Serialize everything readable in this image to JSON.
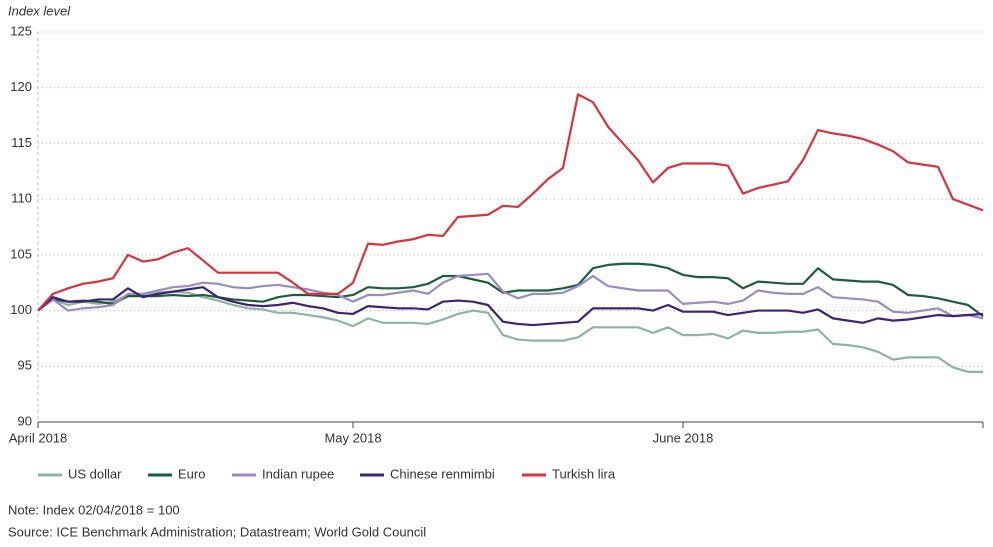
{
  "chart_data": {
    "type": "line",
    "y_label": "Index level",
    "note": "Note: Index 02/04/2018 = 100",
    "source": "Source: ICE Benchmark Administration; Datastream; World Gold Council",
    "categories": [
      "April 2018",
      null,
      null,
      null,
      null,
      null,
      null,
      null,
      null,
      null,
      null,
      null,
      null,
      null,
      null,
      null,
      null,
      null,
      null,
      null,
      null,
      "May 2018",
      null,
      null,
      null,
      null,
      null,
      null,
      null,
      null,
      null,
      null,
      null,
      null,
      null,
      null,
      null,
      null,
      null,
      null,
      null,
      null,
      null,
      "June 2018",
      null,
      null,
      null,
      null,
      null,
      null,
      null,
      null,
      null,
      null,
      null,
      null,
      null,
      null,
      null,
      null,
      null,
      null,
      null,
      null
    ],
    "ylim": [
      90,
      125
    ],
    "yticks": [
      90,
      95,
      100,
      105,
      110,
      115,
      120,
      125
    ],
    "grid": true,
    "series": [
      {
        "name": "US dollar",
        "color": "#8fb3a3",
        "values": [
          100,
          101,
          100.5,
          100.8,
          100.6,
          100.8,
          101.4,
          101.4,
          101.6,
          101.7,
          101.6,
          101.2,
          100.9,
          100.5,
          100.2,
          100.1,
          99.8,
          99.8,
          99.6,
          99.4,
          99.1,
          98.6,
          99.3,
          98.9,
          98.9,
          98.9,
          98.8,
          99.2,
          99.7,
          100,
          99.8,
          97.8,
          97.4,
          97.3,
          97.3,
          97.3,
          97.6,
          98.5,
          98.5,
          98.5,
          98.5,
          98,
          98.5,
          97.8,
          97.8,
          97.9,
          97.5,
          98.2,
          98,
          98,
          98.1,
          98.1,
          98.3,
          97,
          96.9,
          96.7,
          96.3,
          95.6,
          95.8,
          95.8,
          95.8,
          94.9,
          94.5,
          94.5
        ]
      },
      {
        "name": "Euro",
        "color": "#1f5c3d",
        "values": [
          100,
          101,
          100.8,
          100.9,
          100.8,
          100.6,
          101.3,
          101.3,
          101.3,
          101.4,
          101.3,
          101.4,
          101.2,
          101,
          100.9,
          100.8,
          101.2,
          101.4,
          101.4,
          101.3,
          101.2,
          101.4,
          102.1,
          102,
          102,
          102.1,
          102.4,
          103.1,
          103.1,
          102.8,
          102.5,
          101.6,
          101.8,
          101.8,
          101.8,
          102,
          102.3,
          103.8,
          104.1,
          104.2,
          104.2,
          104.1,
          103.8,
          103.2,
          103,
          103,
          102.9,
          102,
          102.6,
          102.5,
          102.4,
          102.4,
          103.8,
          102.8,
          102.7,
          102.6,
          102.6,
          102.3,
          101.4,
          101.3,
          101.1,
          100.8,
          100.5,
          99.5
        ]
      },
      {
        "name": "Indian rupee",
        "color": "#9a8cc0",
        "values": [
          100,
          101,
          100,
          100.2,
          100.3,
          100.5,
          101.5,
          101.5,
          101.8,
          102.1,
          102.2,
          102.5,
          102.4,
          102.1,
          102,
          102.2,
          102.3,
          102.1,
          101.9,
          101.6,
          101.4,
          100.8,
          101.4,
          101.4,
          101.6,
          101.8,
          101.5,
          102.5,
          103.1,
          103.2,
          103.3,
          101.7,
          101.1,
          101.5,
          101.5,
          101.6,
          102.2,
          103.1,
          102.2,
          102,
          101.8,
          101.8,
          101.8,
          100.6,
          100.7,
          100.8,
          100.6,
          100.9,
          101.8,
          101.6,
          101.5,
          101.5,
          102.1,
          101.2,
          101.1,
          101,
          100.8,
          99.9,
          99.8,
          100,
          100.2,
          99.5,
          99.6,
          99.3
        ]
      },
      {
        "name": "Chinese renmimbi",
        "color": "#3b2470",
        "values": [
          100,
          101.2,
          100.8,
          100.8,
          101,
          101,
          102,
          101.2,
          101.5,
          101.7,
          101.9,
          102.1,
          101.2,
          100.8,
          100.5,
          100.4,
          100.5,
          100.7,
          100.4,
          100.2,
          99.8,
          99.7,
          100.4,
          100.3,
          100.2,
          100.2,
          100.1,
          100.8,
          100.9,
          100.8,
          100.5,
          99,
          98.8,
          98.7,
          98.8,
          98.9,
          99,
          100.2,
          100.2,
          100.2,
          100.2,
          100,
          100.5,
          99.9,
          99.9,
          99.9,
          99.6,
          99.8,
          100,
          100,
          100,
          99.8,
          100.1,
          99.3,
          99.1,
          98.9,
          99.3,
          99.1,
          99.2,
          99.4,
          99.6,
          99.5,
          99.6,
          99.7
        ]
      },
      {
        "name": "Turkish lira",
        "color": "#d9323f",
        "values": [
          100,
          101.5,
          102,
          102.4,
          102.6,
          102.9,
          105,
          104.4,
          104.6,
          105.2,
          105.6,
          104.5,
          103.4,
          103.4,
          103.4,
          103.4,
          103.4,
          102.5,
          101.5,
          101.5,
          101.5,
          102.5,
          106,
          105.9,
          106.2,
          106.4,
          106.8,
          106.7,
          108.4,
          108.5,
          108.6,
          109.4,
          109.3,
          110.5,
          111.8,
          112.8,
          119.4,
          118.7,
          116.5,
          115,
          113.5,
          111.5,
          112.8,
          113.2,
          113.2,
          113.2,
          113,
          110.5,
          111,
          111.3,
          111.6,
          113.5,
          116.2,
          115.9,
          115.7,
          115.4,
          114.9,
          114.3,
          113.3,
          113.1,
          112.9,
          110,
          109.5,
          109
        ]
      }
    ]
  }
}
